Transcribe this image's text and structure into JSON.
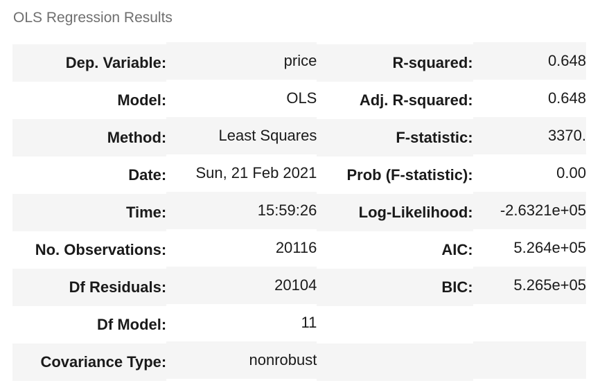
{
  "caption": "OLS Regression Results",
  "rows": [
    {
      "label_left": "Dep. Variable:",
      "value_left": "price",
      "label_right": "R-squared:",
      "value_right": "0.648"
    },
    {
      "label_left": "Model:",
      "value_left": "OLS",
      "label_right": "Adj. R-squared:",
      "value_right": "0.648"
    },
    {
      "label_left": "Method:",
      "value_left": "Least Squares",
      "label_right": "F-statistic:",
      "value_right": "3370."
    },
    {
      "label_left": "Date:",
      "value_left": "Sun, 21 Feb 2021",
      "label_right": "Prob (F-statistic):",
      "value_right": "0.00"
    },
    {
      "label_left": "Time:",
      "value_left": "15:59:26",
      "label_right": "Log-Likelihood:",
      "value_right": "-2.6321e+05"
    },
    {
      "label_left": "No. Observations:",
      "value_left": "20116",
      "label_right": "AIC:",
      "value_right": "5.264e+05"
    },
    {
      "label_left": "Df Residuals:",
      "value_left": "20104",
      "label_right": "BIC:",
      "value_right": "5.265e+05"
    },
    {
      "label_left": "Df Model:",
      "value_left": "11",
      "label_right": "",
      "value_right": ""
    },
    {
      "label_left": "Covariance Type:",
      "value_left": "nonrobust",
      "label_right": "",
      "value_right": ""
    }
  ]
}
